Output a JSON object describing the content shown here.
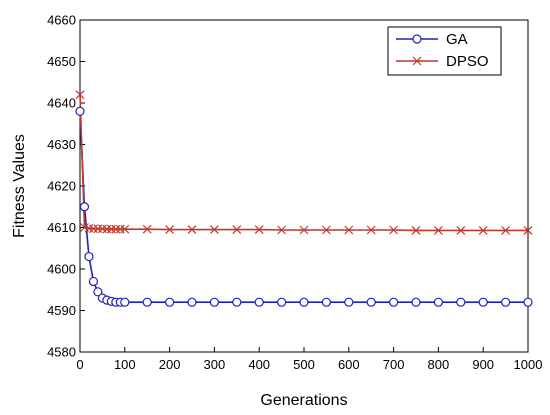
{
  "chart_data": {
    "type": "line",
    "title": "",
    "xlabel": "Generations",
    "ylabel": "Fitness Values",
    "xlim": [
      0,
      1000
    ],
    "ylim": [
      4580,
      4660
    ],
    "xticks": [
      0,
      100,
      200,
      300,
      400,
      500,
      600,
      700,
      800,
      900,
      1000
    ],
    "yticks": [
      4580,
      4590,
      4600,
      4610,
      4620,
      4630,
      4640,
      4650,
      4660
    ],
    "grid": false,
    "legend": "top-right",
    "series": [
      {
        "name": "GA",
        "color": "#1f1fbf",
        "marker": "circle",
        "x": [
          0,
          10,
          20,
          30,
          40,
          50,
          60,
          70,
          80,
          90,
          100,
          150,
          200,
          250,
          300,
          350,
          400,
          450,
          500,
          550,
          600,
          650,
          700,
          750,
          800,
          850,
          900,
          950,
          1000
        ],
        "y": [
          4638,
          4615,
          4603,
          4597,
          4594.5,
          4593,
          4592.5,
          4592.2,
          4592,
          4592,
          4592,
          4592,
          4592,
          4592,
          4592,
          4592,
          4592,
          4592,
          4592,
          4592,
          4592,
          4592,
          4592,
          4592,
          4592,
          4592,
          4592,
          4592,
          4592
        ]
      },
      {
        "name": "DPSO",
        "color": "#c0392b",
        "marker": "x",
        "x": [
          0,
          10,
          20,
          30,
          40,
          50,
          60,
          70,
          80,
          90,
          100,
          150,
          200,
          250,
          300,
          350,
          400,
          450,
          500,
          550,
          600,
          650,
          700,
          750,
          800,
          850,
          900,
          950,
          1000
        ],
        "y": [
          4642,
          4610,
          4609.8,
          4609.7,
          4609.7,
          4609.7,
          4609.6,
          4609.6,
          4609.6,
          4609.6,
          4609.6,
          4609.6,
          4609.5,
          4609.5,
          4609.5,
          4609.5,
          4609.5,
          4609.4,
          4609.4,
          4609.4,
          4609.4,
          4609.4,
          4609.4,
          4609.3,
          4609.3,
          4609.3,
          4609.3,
          4609.3,
          4609.3
        ]
      }
    ]
  }
}
